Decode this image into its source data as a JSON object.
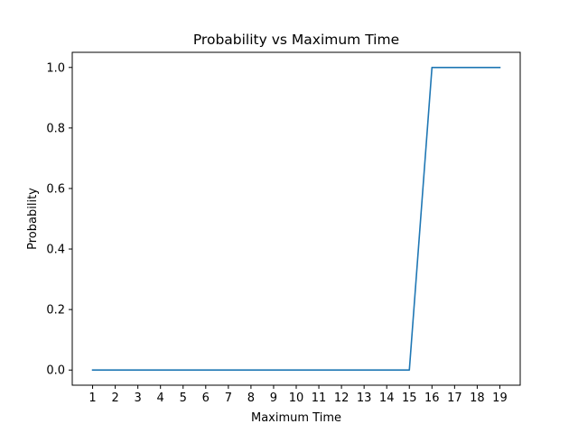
{
  "chart_data": {
    "type": "line",
    "title": "Probability vs Maximum Time",
    "xlabel": "Maximum Time",
    "ylabel": "Probability",
    "x": [
      1,
      2,
      3,
      4,
      5,
      6,
      7,
      8,
      9,
      10,
      11,
      12,
      13,
      14,
      15,
      16,
      17,
      18,
      19
    ],
    "series": [
      {
        "values": [
          0,
          0,
          0,
          0,
          0,
          0,
          0,
          0,
          0,
          0,
          0,
          0,
          0,
          0,
          0,
          1,
          1,
          1,
          1
        ],
        "color": "#1f77b4"
      }
    ],
    "xticks": [
      1,
      2,
      3,
      4,
      5,
      6,
      7,
      8,
      9,
      10,
      11,
      12,
      13,
      14,
      15,
      16,
      17,
      18,
      19
    ],
    "yticks": [
      "0.0",
      "0.2",
      "0.4",
      "0.6",
      "0.8",
      "1.0"
    ],
    "xlim": [
      0.1,
      19.9
    ],
    "ylim": [
      -0.05,
      1.05
    ],
    "grid": false,
    "legend": "none"
  }
}
